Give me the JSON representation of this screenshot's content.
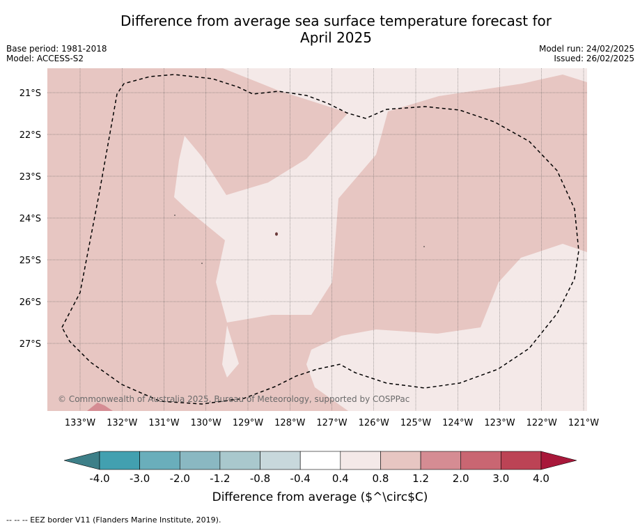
{
  "header": {
    "title_line1": "Difference from average sea surface temperature forecast for",
    "title_line2": "April 2025",
    "base_period": "Base period: 1981-2018",
    "model": "Model: ACCESS-S2",
    "model_run": "Model run: 24/02/2025",
    "issued": "Issued: 26/02/2025"
  },
  "map": {
    "lat_labels": [
      "21°S",
      "22°S",
      "23°S",
      "24°S",
      "25°S",
      "26°S",
      "27°S"
    ],
    "lon_labels": [
      "133°W",
      "132°W",
      "131°W",
      "130°W",
      "129°W",
      "128°W",
      "127°W",
      "126°W",
      "125°W",
      "124°W",
      "123°W",
      "122°W",
      "121°W"
    ],
    "copyright": "© Commonwealth of Australia 2025, Bureau of Meteorology, supported by COSPPac",
    "colors": {
      "band_0_4_to_0_8": "#f4e9e8",
      "band_0_8_to_1_2": "#e7c6c2",
      "band_1_2_to_2_0": "#d58c93"
    }
  },
  "colorbar": {
    "tick_labels": [
      "-4.0",
      "-3.0",
      "-2.0",
      "-1.2",
      "-0.8",
      "-0.4",
      "0.4",
      "0.8",
      "1.2",
      "2.0",
      "3.0",
      "4.0"
    ],
    "colors": [
      "#42a0b0",
      "#6aaebb",
      "#8ab8c2",
      "#a9c8cd",
      "#c8d8dc",
      "#ffffff",
      "#f4e9e8",
      "#e7c6c2",
      "#d58c93",
      "#c96672",
      "#bc4355"
    ],
    "low_extend_color": "#3d7f88",
    "high_extend_color": "#a8183a",
    "label": "Difference from average ($^\\circ$C)"
  },
  "legend": {
    "eez_note": "--  --  -- EEZ border V11 (Flanders Marine Institute, 2019)."
  }
}
